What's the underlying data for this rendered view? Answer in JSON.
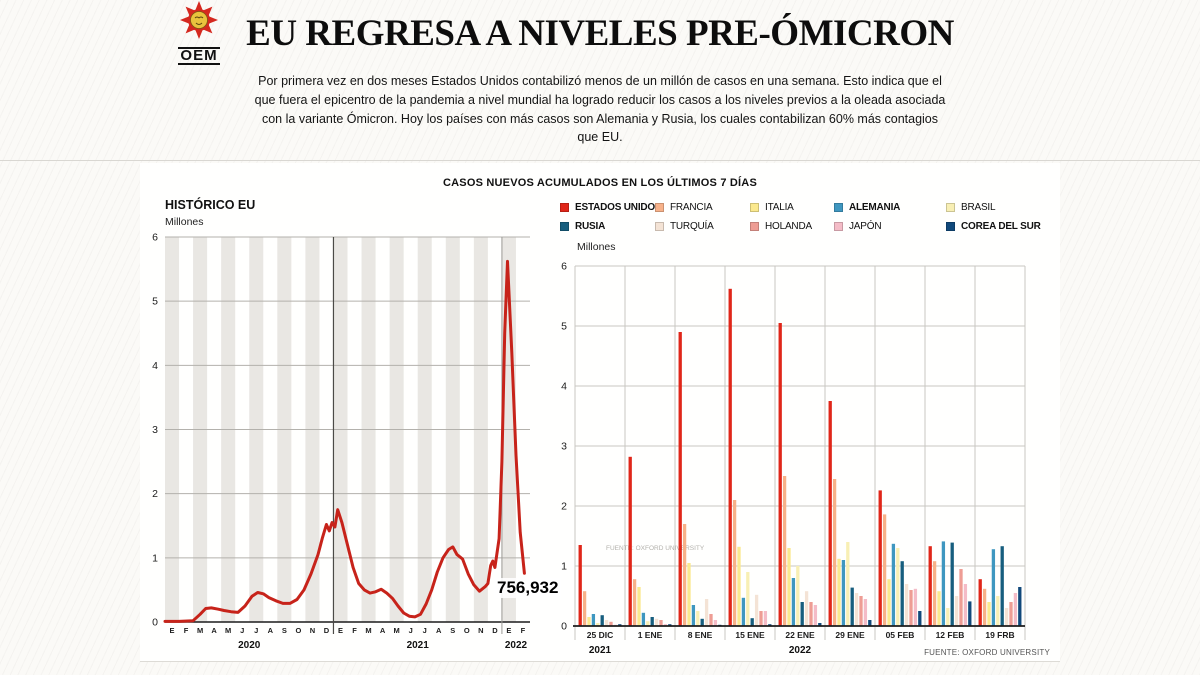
{
  "header": {
    "logo_text": "OEM",
    "title": "EU REGRESA A NIVELES PRE-ÓMICRON",
    "subtitle": "Por primera vez en dos meses Estados Unidos contabilizó menos de un millón de casos en una semana. Esto indica que el que fuera el epicentro de la pandemia a nivel mundial ha logrado reducir los casos a los niveles previos a la oleada asociada con la variante Ómicron. Hoy los países con más casos son Alemania y Rusia, los cuales contabilizan 60% más contagios que EU."
  },
  "section_title": "CASOS NUEVOS ACUMULADOS EN LOS ÚLTIMOS 7 DÍAS",
  "source": "FUENTE: OXFORD UNIVERSITY",
  "chart_data": [
    {
      "type": "line",
      "title": "HISTÓRICO EU",
      "unit_label": "Millones",
      "ylim": [
        0,
        6
      ],
      "line_color": "#c7231a",
      "x_months": [
        "E",
        "F",
        "M",
        "A",
        "M",
        "J",
        "J",
        "A",
        "S",
        "O",
        "N",
        "D",
        "E",
        "F",
        "M",
        "A",
        "M",
        "J",
        "J",
        "A",
        "S",
        "O",
        "N",
        "D",
        "E",
        "F"
      ],
      "years": [
        {
          "label": "2020",
          "start": 0,
          "end": 12
        },
        {
          "label": "2021",
          "start": 12,
          "end": 24
        },
        {
          "label": "2022",
          "start": 24,
          "end": 26
        }
      ],
      "annotation": {
        "text": "756,932",
        "value_millions": 0.756932
      },
      "points": [
        [
          0,
          0.01
        ],
        [
          1,
          0.01
        ],
        [
          2,
          0.02
        ],
        [
          2.5,
          0.12
        ],
        [
          2.9,
          0.21
        ],
        [
          3.3,
          0.22
        ],
        [
          3.8,
          0.2
        ],
        [
          4.2,
          0.18
        ],
        [
          4.7,
          0.16
        ],
        [
          5.2,
          0.15
        ],
        [
          5.7,
          0.25
        ],
        [
          6.2,
          0.4
        ],
        [
          6.6,
          0.46
        ],
        [
          7,
          0.44
        ],
        [
          7.4,
          0.38
        ],
        [
          7.9,
          0.33
        ],
        [
          8.4,
          0.29
        ],
        [
          8.9,
          0.29
        ],
        [
          9.4,
          0.35
        ],
        [
          9.9,
          0.5
        ],
        [
          10.4,
          0.75
        ],
        [
          10.9,
          1.05
        ],
        [
          11.2,
          1.3
        ],
        [
          11.5,
          1.52
        ],
        [
          11.7,
          1.42
        ],
        [
          11.9,
          1.55
        ],
        [
          12.1,
          1.48
        ],
        [
          12.3,
          1.75
        ],
        [
          12.6,
          1.55
        ],
        [
          13,
          1.2
        ],
        [
          13.4,
          0.85
        ],
        [
          13.8,
          0.6
        ],
        [
          14.2,
          0.5
        ],
        [
          14.6,
          0.45
        ],
        [
          15,
          0.47
        ],
        [
          15.4,
          0.51
        ],
        [
          15.8,
          0.45
        ],
        [
          16.2,
          0.37
        ],
        [
          16.6,
          0.25
        ],
        [
          17,
          0.14
        ],
        [
          17.4,
          0.09
        ],
        [
          17.8,
          0.08
        ],
        [
          18.2,
          0.12
        ],
        [
          18.6,
          0.28
        ],
        [
          19,
          0.5
        ],
        [
          19.4,
          0.78
        ],
        [
          19.8,
          1.0
        ],
        [
          20.2,
          1.13
        ],
        [
          20.5,
          1.17
        ],
        [
          20.8,
          1.05
        ],
        [
          21.2,
          0.98
        ],
        [
          21.6,
          0.75
        ],
        [
          22,
          0.58
        ],
        [
          22.4,
          0.48
        ],
        [
          22.8,
          0.55
        ],
        [
          23,
          0.6
        ],
        [
          23.2,
          0.88
        ],
        [
          23.35,
          0.95
        ],
        [
          23.5,
          0.85
        ],
        [
          23.8,
          1.3
        ],
        [
          24,
          2.5
        ],
        [
          24.2,
          4.5
        ],
        [
          24.4,
          5.62
        ],
        [
          24.7,
          4.2
        ],
        [
          25,
          2.6
        ],
        [
          25.3,
          1.4
        ],
        [
          25.6,
          0.76
        ]
      ]
    },
    {
      "type": "grouped_bar",
      "unit_label": "Millones",
      "ylim": [
        0,
        6
      ],
      "categories": [
        "25 DIC",
        "1 ENE",
        "8 ENE",
        "15 ENE",
        "22 ENE",
        "29 ENE",
        "05 FEB",
        "12 FEB",
        "19 FRB"
      ],
      "year_labels": [
        {
          "label": "2021",
          "under": "25 DIC"
        },
        {
          "label": "2022",
          "under": "22 ENE"
        }
      ],
      "watermark": "FUENTE: OXFORD UNIVERSITY",
      "series": [
        {
          "name": "ESTADOS UNIDOS",
          "color": "#e02619",
          "bold": true,
          "values": [
            1.35,
            2.82,
            4.9,
            5.62,
            5.05,
            3.75,
            2.26,
            1.33,
            0.78
          ]
        },
        {
          "name": "FRANCIA",
          "color": "#f7b189",
          "bold": false,
          "values": [
            0.58,
            0.78,
            1.7,
            2.1,
            2.5,
            2.45,
            1.86,
            1.08,
            0.62
          ]
        },
        {
          "name": "ITALIA",
          "color": "#fbe98e",
          "bold": false,
          "values": [
            0.15,
            0.65,
            1.05,
            1.32,
            1.3,
            1.12,
            0.78,
            0.58,
            0.4
          ]
        },
        {
          "name": "ALEMANIA",
          "color": "#3f97c0",
          "bold": true,
          "values": [
            0.2,
            0.22,
            0.35,
            0.47,
            0.8,
            1.1,
            1.37,
            1.41,
            1.28
          ]
        },
        {
          "name": "BRASIL",
          "color": "#f8efb4",
          "bold": false,
          "values": [
            0.05,
            0.08,
            0.25,
            0.9,
            1.0,
            1.4,
            1.3,
            0.3,
            0.5
          ]
        },
        {
          "name": "RUSIA",
          "color": "#175e7e",
          "bold": true,
          "values": [
            0.18,
            0.15,
            0.12,
            0.13,
            0.4,
            0.64,
            1.08,
            1.39,
            1.33
          ]
        },
        {
          "name": "TURQUÍA",
          "color": "#f4e3d5",
          "bold": false,
          "values": [
            0.1,
            0.12,
            0.45,
            0.52,
            0.58,
            0.55,
            0.7,
            0.5,
            0.3
          ]
        },
        {
          "name": "HOLANDA",
          "color": "#ee9d94",
          "bold": false,
          "values": [
            0.07,
            0.1,
            0.2,
            0.25,
            0.4,
            0.5,
            0.6,
            0.95,
            0.4
          ]
        },
        {
          "name": "JAPÓN",
          "color": "#f4bcc7",
          "bold": false,
          "values": [
            0.02,
            0.03,
            0.1,
            0.25,
            0.35,
            0.45,
            0.62,
            0.7,
            0.55
          ]
        },
        {
          "name": "COREA DEL SUR",
          "color": "#11497b",
          "bold": true,
          "values": [
            0.03,
            0.03,
            0.02,
            0.03,
            0.05,
            0.1,
            0.25,
            0.41,
            0.65
          ]
        }
      ]
    }
  ]
}
